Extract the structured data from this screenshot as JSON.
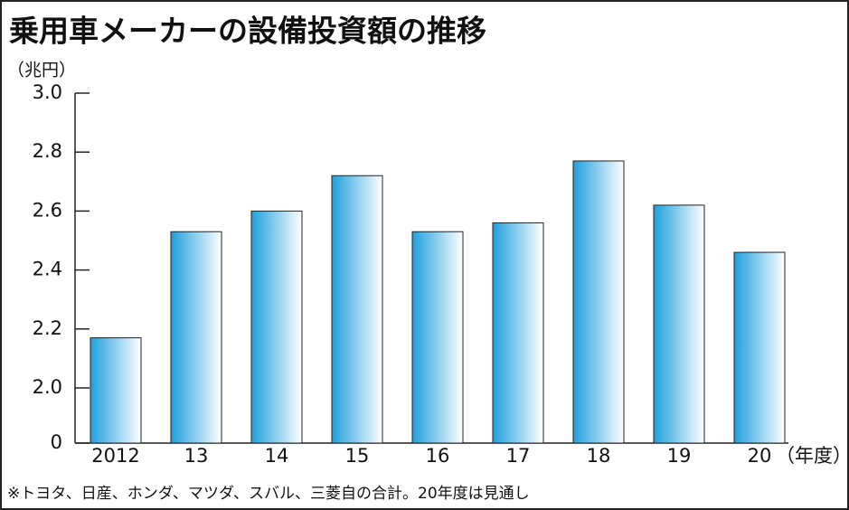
{
  "chart_data": {
    "type": "bar",
    "title": "乗用車メーカーの設備投資額の推移",
    "y_unit_label": "（兆円）",
    "x_unit_label": "（年度）",
    "footnote": "※トヨタ、日産、ホンダ、マツダ、スバル、三菱自の合計。20年度は見通し",
    "categories": [
      "2012",
      "13",
      "14",
      "15",
      "16",
      "17",
      "18",
      "19",
      "20"
    ],
    "values": [
      2.17,
      2.53,
      2.6,
      2.72,
      2.53,
      2.56,
      2.77,
      2.62,
      2.46
    ],
    "color": "#1f9fdc",
    "ylim": [
      0,
      3.0
    ],
    "y_break": [
      0,
      2.0
    ],
    "yticks": [
      0,
      {
        "value": 2.0,
        "label": "2.0"
      },
      2.2,
      2.4,
      2.6,
      2.8,
      {
        "value": 3.0,
        "label": "3.0"
      }
    ],
    "grid": false
  }
}
